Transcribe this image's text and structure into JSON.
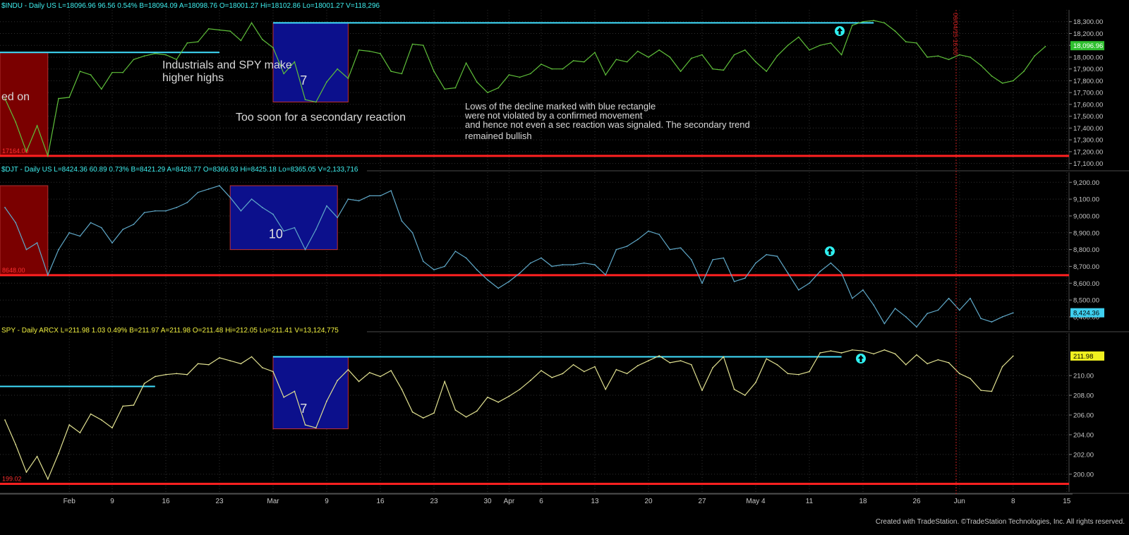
{
  "colors": {
    "background": "#000000",
    "grid": "#303030",
    "axis_text": "#c8c8c8",
    "support_line": "#ff2020",
    "resistance_line": "#40e0ff",
    "blue_box": "#0c108c",
    "red_box": "#7a0000",
    "indu_line": "#5fbf3a",
    "djt_line": "#5fa8c8",
    "spy_line": "#e0e090",
    "signal_marker": "#2ff0f0",
    "annotation_text": "#d8d8d8"
  },
  "x_axis": {
    "labels": [
      "Feb",
      "9",
      "16",
      "23",
      "Mar",
      "9",
      "16",
      "23",
      "30",
      "Apr",
      "6",
      "13",
      "20",
      "27",
      "May 4",
      "11",
      "18",
      "26",
      "Jun",
      "8",
      "15"
    ],
    "label_index": [
      6,
      10,
      15,
      20,
      25,
      30,
      35,
      40,
      45,
      47,
      50,
      55,
      60,
      65,
      70,
      75,
      80,
      85,
      89,
      94,
      99
    ]
  },
  "annotations": {
    "left_cut_text": "ed on",
    "higher_highs_line1": "Industrials and SPY  make",
    "higher_highs_line2": "higher highs",
    "too_soon": "Too soon for  a secondary reaction",
    "lows_line1": "Lows of the decline marked with blue rectangle",
    "lows_line2": "were not violated by a confirmed movement",
    "lows_line3": "and hence not even a sec reaction was signaled. The secondary trend",
    "lows_line4": "remained bullish",
    "vertical_marker_label": "06/04/15 16:00"
  },
  "footer": "Created with TradeStation. ©TradeStation Technologies, Inc. All rights reserved.",
  "chart_data": [
    {
      "type": "line",
      "name": "$INDU",
      "header": "$INDU - Daily  US  L=18096.96  96.56   0.54%  B=18094.09  A=18098.76  O=18001.27  Hi=18102.86  Lo=18001.27  V=118,296",
      "last_value": 18096.96,
      "last_label": "18,096.96",
      "ylim": [
        17050,
        18400
      ],
      "yticks": [
        17100,
        17200,
        17300,
        17400,
        17500,
        17600,
        17700,
        17800,
        17900,
        18000,
        18100,
        18200,
        18300
      ],
      "ytick_labels": [
        "17,100.00",
        "17,200.00",
        "17,300.00",
        "17,400.00",
        "17,500.00",
        "17,600.00",
        "17,700.00",
        "17,800.00",
        "17,900.00",
        "18,000.00",
        "18,100.00",
        "18,200.00",
        "18,300.00"
      ],
      "values": [
        17650,
        17450,
        17200,
        17420,
        17164,
        17650,
        17660,
        17880,
        17850,
        17730,
        17870,
        17870,
        17980,
        18010,
        18030,
        18020,
        17980,
        18120,
        18130,
        18240,
        18230,
        18220,
        18140,
        18290,
        18150,
        18080,
        17860,
        17960,
        17640,
        17620,
        17790,
        17900,
        17820,
        18060,
        18050,
        18030,
        17880,
        17860,
        18110,
        18100,
        17880,
        17730,
        17740,
        17950,
        17790,
        17700,
        17740,
        17850,
        17830,
        17860,
        17940,
        17900,
        17900,
        17970,
        17960,
        18040,
        17850,
        17980,
        17960,
        18050,
        18000,
        18060,
        18000,
        17880,
        17990,
        18020,
        17900,
        17890,
        18020,
        18060,
        17960,
        17880,
        18010,
        18100,
        18170,
        18060,
        18100,
        18120,
        18020,
        18270,
        18300,
        18310,
        18290,
        18220,
        18130,
        18120,
        18000,
        18010,
        17980,
        18020,
        18000,
        17930,
        17840,
        17780,
        17800,
        17880,
        18010,
        18090
      ],
      "support": {
        "value": 17164,
        "label": "17164.00"
      },
      "resistance": [
        {
          "value": 18040,
          "from": 0,
          "to": 20
        },
        {
          "value": 18290,
          "from": 25,
          "to": 81
        }
      ],
      "blue_box": {
        "from": 25,
        "to": 32,
        "low": 17620,
        "high": 18290,
        "count": "7"
      },
      "red_box": {
        "from": 0,
        "to": 4,
        "low": 17164,
        "high": 18040
      }
    },
    {
      "type": "line",
      "name": "$DJT",
      "header": "$DJT - Daily  US  L=8424.36  60.89  0.73%  B=8421.29  A=8428.77  O=8366.93  Hi=8425.18  Lo=8365.05  V=2,133,716",
      "last_value": 8424.36,
      "last_label": "8,424.36",
      "ylim": [
        8320,
        9260
      ],
      "yticks": [
        8400,
        8500,
        8600,
        8700,
        8800,
        8900,
        9000,
        9100,
        9200
      ],
      "ytick_labels": [
        "8,400.00",
        "8,500.00",
        "8,600.00",
        "8,700.00",
        "8,800.00",
        "8,900.00",
        "9,000.00",
        "9,100.00",
        "9,200.00"
      ],
      "values": [
        9050,
        8960,
        8800,
        8840,
        8648,
        8800,
        8900,
        8880,
        8960,
        8930,
        8840,
        8920,
        8950,
        9020,
        9030,
        9030,
        9050,
        9080,
        9140,
        9160,
        9180,
        9110,
        9030,
        9100,
        9050,
        9010,
        8910,
        8930,
        8800,
        8920,
        9060,
        8990,
        9100,
        9090,
        9120,
        9120,
        9150,
        8970,
        8900,
        8730,
        8680,
        8700,
        8790,
        8750,
        8680,
        8620,
        8570,
        8610,
        8660,
        8720,
        8750,
        8700,
        8710,
        8710,
        8720,
        8710,
        8650,
        8800,
        8820,
        8860,
        8910,
        8890,
        8800,
        8810,
        8740,
        8600,
        8740,
        8750,
        8610,
        8630,
        8720,
        8770,
        8760,
        8660,
        8560,
        8600,
        8670,
        8720,
        8660,
        8510,
        8560,
        8470,
        8360,
        8450,
        8400,
        8340,
        8420,
        8440,
        8510,
        8440,
        8510,
        8390,
        8370,
        8400,
        8424
      ],
      "support": {
        "value": 8648,
        "label": "8648.00"
      },
      "blue_box": {
        "from": 21,
        "to": 31,
        "low": 8800,
        "high": 9180,
        "count": "10"
      },
      "red_box": {
        "from": 0,
        "to": 4,
        "low": 8648,
        "high": 9180
      }
    },
    {
      "type": "line",
      "name": "SPY",
      "header": "SPY - Daily  ARCX  L=211.98  1.03  0.49%  B=211.97  A=211.98  O=211.48  Hi=212.05  Lo=211.41  V=13,124,775",
      "last_value": 211.98,
      "last_label": "211.98",
      "ylim": [
        198.2,
        214.3
      ],
      "yticks": [
        200,
        202,
        204,
        206,
        208,
        210
      ],
      "ytick_labels": [
        "200.00",
        "202.00",
        "204.00",
        "206.00",
        "208.00",
        "210.00"
      ],
      "values": [
        205.5,
        203,
        200.2,
        201.8,
        199.5,
        202.1,
        205,
        204.2,
        206.1,
        205.5,
        204.7,
        206.9,
        207,
        209.2,
        209.9,
        210.1,
        210.2,
        210.1,
        211.2,
        211.1,
        211.8,
        211.5,
        211.2,
        211.9,
        210.8,
        210.4,
        207.8,
        208.4,
        205,
        204.7,
        207.4,
        209.5,
        210.6,
        209.4,
        210.3,
        209.9,
        210.5,
        208.6,
        206.3,
        205.7,
        206.2,
        209.4,
        206.5,
        205.8,
        206.4,
        207.8,
        207.3,
        207.9,
        208.6,
        209.5,
        210.5,
        209.8,
        210.2,
        211.1,
        210.4,
        210.9,
        208.6,
        210.6,
        210.2,
        211,
        211.5,
        212,
        211.3,
        211.5,
        211.1,
        208.5,
        210.8,
        211.9,
        208.6,
        208,
        209.3,
        211.7,
        211.1,
        210.2,
        210.1,
        210.4,
        212.3,
        212.5,
        212.3,
        212.6,
        212.5,
        212.2,
        212.6,
        212.2,
        211.1,
        212.1,
        211.2,
        211.6,
        211.3,
        210.2,
        209.7,
        208.5,
        208.4,
        210.9,
        211.98
      ],
      "support": {
        "value": 199.02,
        "label": "199.02"
      },
      "resistance": [
        {
          "value": 208.9,
          "from": 0,
          "to": 14
        },
        {
          "value": 211.9,
          "from": 25,
          "to": 78
        }
      ],
      "blue_box": {
        "from": 25,
        "to": 32,
        "low": 204.6,
        "high": 211.9,
        "count": "7"
      }
    }
  ]
}
